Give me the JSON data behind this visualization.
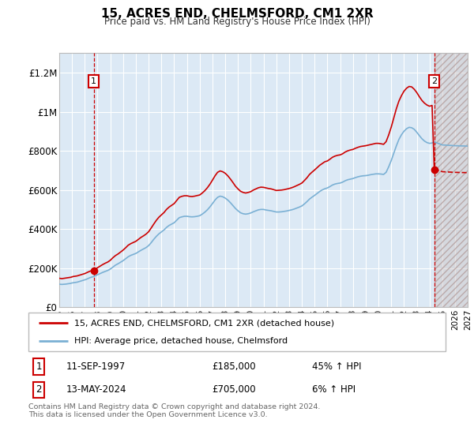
{
  "title": "15, ACRES END, CHELMSFORD, CM1 2XR",
  "subtitle": "Price paid vs. HM Land Registry's House Price Index (HPI)",
  "legend_line1": "15, ACRES END, CHELMSFORD, CM1 2XR (detached house)",
  "legend_line2": "HPI: Average price, detached house, Chelmsford",
  "annotation1_date": "11-SEP-1997",
  "annotation1_price": "£185,000",
  "annotation1_hpi": "45% ↑ HPI",
  "annotation2_date": "13-MAY-2024",
  "annotation2_price": "£705,000",
  "annotation2_hpi": "6% ↑ HPI",
  "footer": "Contains HM Land Registry data © Crown copyright and database right 2024.\nThis data is licensed under the Open Government Licence v3.0.",
  "red_color": "#cc0000",
  "blue_color": "#7ab0d4",
  "bg_color": "#dce9f5",
  "grid_color": "#ffffff",
  "ylim": [
    0,
    1300000
  ],
  "yticks": [
    0,
    200000,
    400000,
    600000,
    800000,
    1000000,
    1200000
  ],
  "ytick_labels": [
    "£0",
    "£200K",
    "£400K",
    "£600K",
    "£800K",
    "£1M",
    "£1.2M"
  ],
  "sale1_year": 1997.7,
  "sale1_price": 185000,
  "sale2_year": 2024.37,
  "sale2_price": 705000,
  "hpi_years": [
    1995.0,
    1995.1,
    1995.2,
    1995.3,
    1995.4,
    1995.5,
    1995.6,
    1995.7,
    1995.8,
    1995.9,
    1996.0,
    1996.1,
    1996.2,
    1996.3,
    1996.4,
    1996.5,
    1996.6,
    1996.7,
    1996.8,
    1996.9,
    1997.0,
    1997.1,
    1997.2,
    1997.3,
    1997.4,
    1997.5,
    1997.6,
    1997.7,
    1997.8,
    1997.9,
    1998.0,
    1998.2,
    1998.4,
    1998.6,
    1998.8,
    1999.0,
    1999.2,
    1999.4,
    1999.6,
    1999.8,
    2000.0,
    2000.2,
    2000.4,
    2000.6,
    2000.8,
    2001.0,
    2001.2,
    2001.4,
    2001.6,
    2001.8,
    2002.0,
    2002.2,
    2002.4,
    2002.6,
    2002.8,
    2003.0,
    2003.2,
    2003.4,
    2003.6,
    2003.8,
    2004.0,
    2004.2,
    2004.4,
    2004.6,
    2004.8,
    2005.0,
    2005.2,
    2005.4,
    2005.6,
    2005.8,
    2006.0,
    2006.2,
    2006.4,
    2006.6,
    2006.8,
    2007.0,
    2007.2,
    2007.4,
    2007.6,
    2007.8,
    2008.0,
    2008.2,
    2008.4,
    2008.6,
    2008.8,
    2009.0,
    2009.2,
    2009.4,
    2009.6,
    2009.8,
    2010.0,
    2010.2,
    2010.4,
    2010.6,
    2010.8,
    2011.0,
    2011.2,
    2011.4,
    2011.6,
    2011.8,
    2012.0,
    2012.2,
    2012.4,
    2012.6,
    2012.8,
    2013.0,
    2013.2,
    2013.4,
    2013.6,
    2013.8,
    2014.0,
    2014.2,
    2014.4,
    2014.6,
    2014.8,
    2015.0,
    2015.2,
    2015.4,
    2015.6,
    2015.8,
    2016.0,
    2016.2,
    2016.4,
    2016.6,
    2016.8,
    2017.0,
    2017.2,
    2017.4,
    2017.6,
    2017.8,
    2018.0,
    2018.2,
    2018.4,
    2018.6,
    2018.8,
    2019.0,
    2019.2,
    2019.4,
    2019.6,
    2019.8,
    2020.0,
    2020.2,
    2020.4,
    2020.6,
    2020.8,
    2021.0,
    2021.2,
    2021.4,
    2021.6,
    2021.8,
    2022.0,
    2022.2,
    2022.4,
    2022.6,
    2022.8,
    2023.0,
    2023.2,
    2023.4,
    2023.6,
    2023.8,
    2024.0,
    2024.2,
    2024.4,
    2024.6,
    2024.8,
    2025.0,
    2025.5,
    2026.0,
    2026.5,
    2027.0
  ],
  "hpi_prices": [
    118000,
    117000,
    116500,
    117000,
    117500,
    118000,
    119000,
    120000,
    121000,
    122000,
    124000,
    125000,
    126000,
    127000,
    128000,
    130000,
    132000,
    134000,
    136000,
    138000,
    140000,
    142000,
    145000,
    148000,
    151000,
    153000,
    155000,
    157000,
    160000,
    163000,
    166000,
    172000,
    178000,
    183000,
    188000,
    195000,
    205000,
    215000,
    222000,
    230000,
    238000,
    248000,
    258000,
    265000,
    270000,
    275000,
    283000,
    291000,
    298000,
    305000,
    315000,
    330000,
    347000,
    362000,
    375000,
    385000,
    395000,
    408000,
    418000,
    425000,
    432000,
    445000,
    458000,
    462000,
    465000,
    465000,
    463000,
    462000,
    463000,
    465000,
    468000,
    476000,
    486000,
    498000,
    513000,
    530000,
    548000,
    562000,
    568000,
    565000,
    558000,
    548000,
    535000,
    520000,
    505000,
    493000,
    483000,
    478000,
    476000,
    478000,
    482000,
    488000,
    493000,
    498000,
    500000,
    500000,
    497000,
    495000,
    493000,
    490000,
    487000,
    487000,
    488000,
    490000,
    492000,
    495000,
    498000,
    502000,
    507000,
    512000,
    518000,
    528000,
    540000,
    553000,
    563000,
    572000,
    582000,
    592000,
    600000,
    606000,
    610000,
    617000,
    625000,
    630000,
    633000,
    635000,
    640000,
    647000,
    652000,
    655000,
    658000,
    663000,
    667000,
    670000,
    672000,
    673000,
    675000,
    678000,
    680000,
    682000,
    682000,
    681000,
    679000,
    690000,
    718000,
    750000,
    788000,
    825000,
    858000,
    882000,
    900000,
    913000,
    920000,
    918000,
    910000,
    895000,
    878000,
    862000,
    850000,
    842000,
    838000,
    840000,
    845000,
    840000,
    835000,
    830000,
    828000,
    826000,
    825000,
    824000
  ],
  "red_years": [
    1995.0,
    1995.1,
    1995.2,
    1995.3,
    1995.4,
    1995.5,
    1995.6,
    1995.7,
    1995.8,
    1995.9,
    1996.0,
    1996.1,
    1996.2,
    1996.3,
    1996.4,
    1996.5,
    1996.6,
    1996.7,
    1996.8,
    1996.9,
    1997.0,
    1997.1,
    1997.2,
    1997.3,
    1997.4,
    1997.5,
    1997.6,
    1997.7,
    1997.8,
    1997.9,
    1998.0,
    1998.2,
    1998.4,
    1998.6,
    1998.8,
    1999.0,
    1999.2,
    1999.4,
    1999.6,
    1999.8,
    2000.0,
    2000.2,
    2000.4,
    2000.6,
    2000.8,
    2001.0,
    2001.2,
    2001.4,
    2001.6,
    2001.8,
    2002.0,
    2002.2,
    2002.4,
    2002.6,
    2002.8,
    2003.0,
    2003.2,
    2003.4,
    2003.6,
    2003.8,
    2004.0,
    2004.2,
    2004.4,
    2004.6,
    2004.8,
    2005.0,
    2005.2,
    2005.4,
    2005.6,
    2005.8,
    2006.0,
    2006.2,
    2006.4,
    2006.6,
    2006.8,
    2007.0,
    2007.2,
    2007.4,
    2007.6,
    2007.8,
    2008.0,
    2008.2,
    2008.4,
    2008.6,
    2008.8,
    2009.0,
    2009.2,
    2009.4,
    2009.6,
    2009.8,
    2010.0,
    2010.2,
    2010.4,
    2010.6,
    2010.8,
    2011.0,
    2011.2,
    2011.4,
    2011.6,
    2011.8,
    2012.0,
    2012.2,
    2012.4,
    2012.6,
    2012.8,
    2013.0,
    2013.2,
    2013.4,
    2013.6,
    2013.8,
    2014.0,
    2014.2,
    2014.4,
    2014.6,
    2014.8,
    2015.0,
    2015.2,
    2015.4,
    2015.6,
    2015.8,
    2016.0,
    2016.2,
    2016.4,
    2016.6,
    2016.8,
    2017.0,
    2017.2,
    2017.4,
    2017.6,
    2017.8,
    2018.0,
    2018.2,
    2018.4,
    2018.6,
    2018.8,
    2019.0,
    2019.2,
    2019.4,
    2019.6,
    2019.8,
    2020.0,
    2020.2,
    2020.4,
    2020.6,
    2020.8,
    2021.0,
    2021.2,
    2021.4,
    2021.6,
    2021.8,
    2022.0,
    2022.2,
    2022.4,
    2022.6,
    2022.8,
    2023.0,
    2023.2,
    2023.4,
    2023.6,
    2023.8,
    2024.0,
    2024.2,
    2024.37
  ],
  "red_prices": [
    148000,
    147000,
    146000,
    147000,
    148000,
    149000,
    150000,
    151000,
    152000,
    153000,
    155000,
    157000,
    158000,
    159000,
    160000,
    162000,
    164000,
    166000,
    168000,
    170000,
    172000,
    175000,
    178000,
    181000,
    184000,
    186000,
    188000,
    185000,
    192000,
    197000,
    202000,
    210000,
    218000,
    225000,
    231000,
    240000,
    253000,
    264000,
    272000,
    282000,
    292000,
    304000,
    317000,
    325000,
    331000,
    337000,
    347000,
    357000,
    365000,
    374000,
    386000,
    405000,
    425000,
    444000,
    460000,
    472000,
    484000,
    500000,
    512000,
    521000,
    530000,
    546000,
    562000,
    567000,
    570000,
    570000,
    567000,
    566000,
    568000,
    571000,
    574000,
    584000,
    596000,
    611000,
    629000,
    650000,
    672000,
    690000,
    697000,
    693000,
    685000,
    672000,
    656000,
    638000,
    619000,
    605000,
    593000,
    587000,
    584000,
    587000,
    591000,
    599000,
    605000,
    611000,
    614000,
    613000,
    610000,
    607000,
    605000,
    601000,
    597000,
    598000,
    599000,
    601000,
    604000,
    607000,
    611000,
    616000,
    622000,
    628000,
    635000,
    648000,
    662000,
    679000,
    691000,
    702000,
    714000,
    726000,
    735000,
    744000,
    748000,
    757000,
    767000,
    773000,
    777000,
    779000,
    785000,
    794000,
    800000,
    804000,
    807000,
    813000,
    818000,
    822000,
    824000,
    826000,
    829000,
    832000,
    835000,
    838000,
    838000,
    836000,
    833000,
    847000,
    881000,
    921000,
    968000,
    1015000,
    1054000,
    1082000,
    1105000,
    1120000,
    1129000,
    1127000,
    1115000,
    1098000,
    1077000,
    1058000,
    1044000,
    1034000,
    1028000,
    1032000,
    705000
  ]
}
